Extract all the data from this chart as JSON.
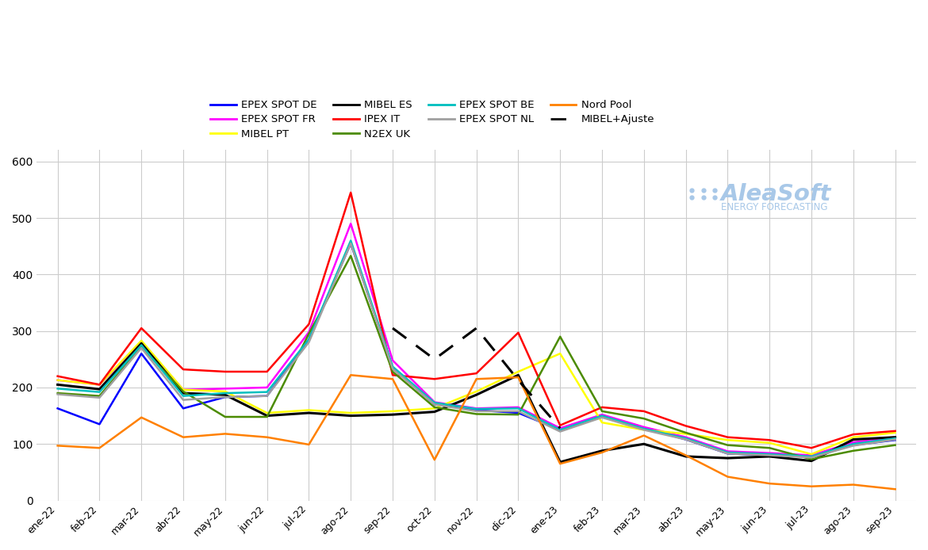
{
  "x_labels": [
    "ene-22",
    "feb-22",
    "mar-22",
    "abr-22",
    "may-22",
    "jun-22",
    "jul-22",
    "ago-22",
    "sep-22",
    "oct-22",
    "nov-22",
    "dic-22",
    "ene-23",
    "feb-23",
    "mar-23",
    "abr-23",
    "may-23",
    "jun-23",
    "jul-23",
    "ago-23",
    "sep-23"
  ],
  "series": {
    "EPEX SPOT DE": {
      "color": "#0000FF",
      "values": [
        163,
        135,
        260,
        163,
        183,
        185,
        285,
        455,
        235,
        170,
        160,
        155,
        125,
        148,
        128,
        108,
        83,
        80,
        78,
        98,
        107
      ]
    },
    "EPEX SPOT FR": {
      "color": "#FF00FF",
      "values": [
        213,
        205,
        280,
        196,
        198,
        200,
        298,
        490,
        248,
        174,
        163,
        165,
        128,
        152,
        130,
        112,
        87,
        84,
        80,
        103,
        112
      ]
    },
    "MIBEL PT": {
      "color": "#FFFF00",
      "values": [
        213,
        205,
        283,
        196,
        193,
        155,
        160,
        155,
        158,
        163,
        193,
        228,
        260,
        138,
        125,
        118,
        107,
        102,
        82,
        112,
        120
      ]
    },
    "MIBEL ES": {
      "color": "#000000",
      "values": [
        205,
        197,
        278,
        190,
        187,
        150,
        155,
        150,
        152,
        157,
        187,
        222,
        68,
        88,
        100,
        78,
        75,
        78,
        70,
        108,
        112
      ]
    },
    "IPEX IT": {
      "color": "#FF0000",
      "values": [
        220,
        205,
        305,
        232,
        228,
        228,
        312,
        545,
        222,
        215,
        225,
        297,
        133,
        165,
        158,
        132,
        112,
        107,
        93,
        117,
        123
      ]
    },
    "N2EX UK": {
      "color": "#4B8B00",
      "values": [
        190,
        185,
        272,
        193,
        148,
        148,
        295,
        433,
        228,
        165,
        153,
        152,
        290,
        158,
        145,
        120,
        98,
        93,
        73,
        88,
        98
      ]
    },
    "EPEX SPOT BE": {
      "color": "#00BFBF",
      "values": [
        198,
        192,
        275,
        185,
        190,
        192,
        285,
        460,
        237,
        173,
        162,
        163,
        125,
        150,
        127,
        110,
        85,
        82,
        78,
        100,
        110
      ]
    },
    "EPEX SPOT NL": {
      "color": "#A0A0A0",
      "values": [
        188,
        182,
        270,
        178,
        183,
        185,
        280,
        455,
        233,
        170,
        158,
        158,
        122,
        147,
        125,
        108,
        83,
        80,
        76,
        97,
        108
      ]
    },
    "Nord Pool": {
      "color": "#FF8000",
      "values": [
        97,
        93,
        147,
        112,
        118,
        112,
        99,
        222,
        215,
        72,
        215,
        218,
        65,
        85,
        115,
        80,
        42,
        30,
        25,
        28,
        20
      ]
    },
    "MIBEL+Ajuste": {
      "color": "#000000",
      "dashed": true,
      "values": [
        null,
        null,
        null,
        null,
        null,
        null,
        null,
        null,
        305,
        250,
        305,
        213,
        128,
        null,
        null,
        null,
        null,
        null,
        null,
        null,
        null
      ]
    }
  },
  "ylim": [
    0,
    620
  ],
  "yticks": [
    0,
    100,
    200,
    300,
    400,
    500,
    600
  ],
  "legend_order": [
    "EPEX SPOT DE",
    "EPEX SPOT FR",
    "MIBEL PT",
    "MIBEL ES",
    "IPEX IT",
    "N2EX UK",
    "EPEX SPOT BE",
    "EPEX SPOT NL",
    "Nord Pool",
    "MIBEL+Ajuste"
  ],
  "watermark_color": "#A8C8E8",
  "background_color": "#FFFFFF",
  "grid_color": "#CCCCCC"
}
